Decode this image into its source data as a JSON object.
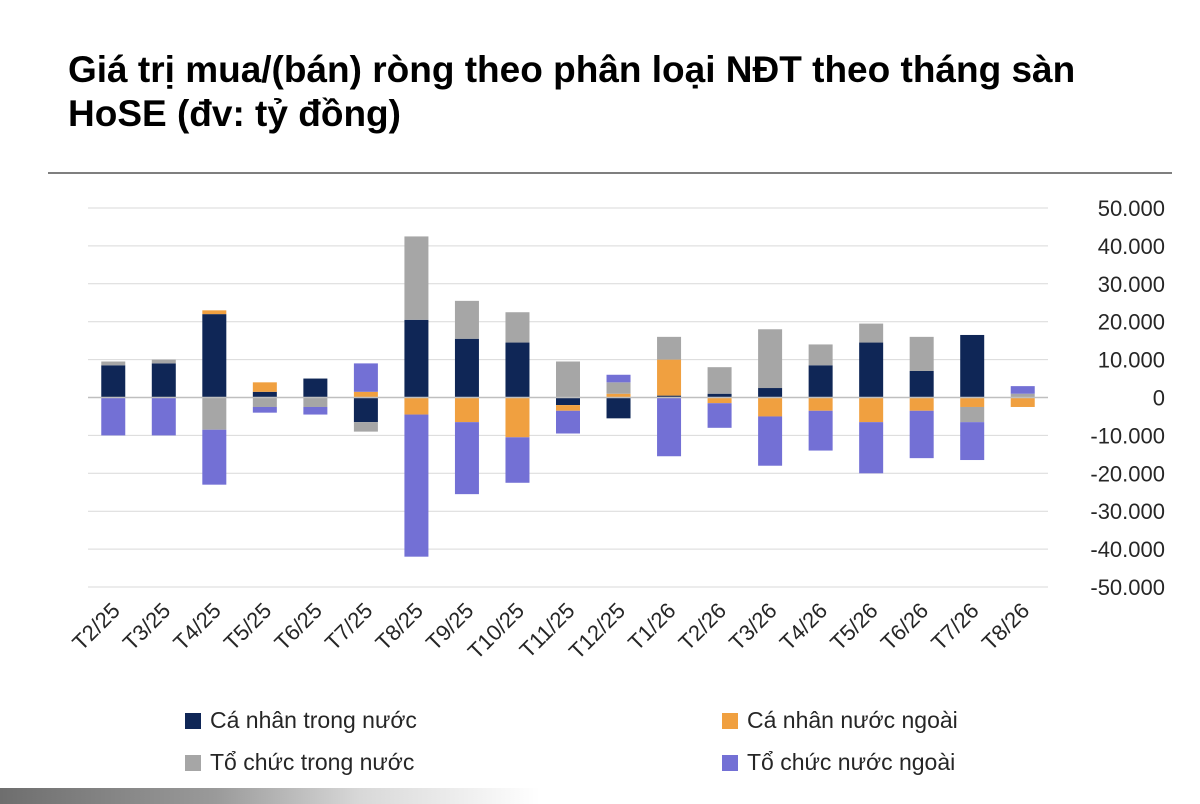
{
  "chart_data": {
    "type": "bar",
    "stacked": true,
    "title": "Giá trị mua/(bán) ròng theo phân loại NĐT theo tháng sàn HoSE (đv: tỷ đồng)",
    "categories": [
      "T2/25",
      "T3/25",
      "T4/25",
      "T5/25",
      "T6/25",
      "T7/25",
      "T8/25",
      "T9/25",
      "T10/25",
      "T11/25",
      "T12/25",
      "T1/26",
      "T2/26",
      "T3/26",
      "T4/26",
      "T5/26",
      "T6/26",
      "T7/26",
      "T8/26"
    ],
    "series": [
      {
        "name": "Cá nhân trong nước",
        "color": "#0f2656",
        "values": [
          8500,
          9000,
          22000,
          1500,
          5000,
          -6500,
          20500,
          15500,
          14500,
          -2000,
          -5500,
          500,
          1000,
          2500,
          8500,
          14500,
          7000,
          16500,
          0
        ]
      },
      {
        "name": "Cá nhân nước ngoài",
        "color": "#f0a040",
        "values": [
          0,
          0,
          1000,
          2500,
          0,
          1500,
          -4500,
          -6500,
          -10500,
          -1500,
          1000,
          9500,
          -1500,
          -5000,
          -3500,
          -6500,
          -3500,
          -2500,
          -2500
        ]
      },
      {
        "name": "Tổ chức trong nước",
        "color": "#a6a6a6",
        "values": [
          1000,
          1000,
          -8500,
          -2500,
          -2500,
          -2500,
          22000,
          10000,
          8000,
          9500,
          3000,
          6000,
          7000,
          15500,
          5500,
          5000,
          9000,
          -4000,
          1000
        ]
      },
      {
        "name": "Tổ chức nước ngoài",
        "color": "#7370d5",
        "values": [
          -10000,
          -10000,
          -14500,
          -1500,
          -2000,
          7500,
          -37500,
          -19000,
          -12000,
          -6000,
          2000,
          -15500,
          -6500,
          -13000,
          -10500,
          -13500,
          -12500,
          -10000,
          2000
        ]
      }
    ],
    "yticks": [
      "50.000",
      "40.000",
      "30.000",
      "20.000",
      "10.000",
      "0",
      "-10.000",
      "-20.000",
      "-30.000",
      "-40.000",
      "-50.000"
    ],
    "ylim": [
      -50000,
      50000
    ],
    "grid": true,
    "legend_position": "bottom"
  }
}
